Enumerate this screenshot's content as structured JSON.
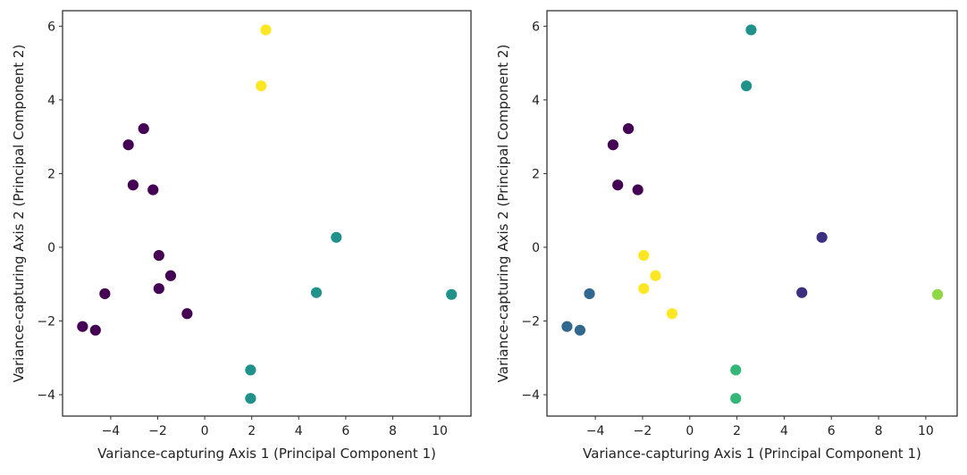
{
  "chart_data": [
    {
      "type": "scatter",
      "title": "",
      "xlabel": "Variance-capturing Axis 1 (Principal Component 1)",
      "ylabel": "Variance-capturing Axis 2 (Principal Component 2)",
      "xlim": [
        -6.05,
        11.33
      ],
      "ylim": [
        -4.58,
        6.42
      ],
      "xticks": [
        -4,
        -2,
        0,
        2,
        4,
        6,
        8,
        10
      ],
      "yticks": [
        -4,
        -2,
        0,
        2,
        4,
        6
      ],
      "grid": false,
      "points": [
        {
          "x": 2.6,
          "y": 5.9,
          "color": "#fde725"
        },
        {
          "x": 2.4,
          "y": 4.38,
          "color": "#fde725"
        },
        {
          "x": -2.6,
          "y": 3.22,
          "color": "#440154"
        },
        {
          "x": -3.25,
          "y": 2.78,
          "color": "#440154"
        },
        {
          "x": -3.05,
          "y": 1.69,
          "color": "#440154"
        },
        {
          "x": -2.2,
          "y": 1.56,
          "color": "#440154"
        },
        {
          "x": -1.95,
          "y": -0.22,
          "color": "#440154"
        },
        {
          "x": -1.45,
          "y": -0.77,
          "color": "#440154"
        },
        {
          "x": -1.95,
          "y": -1.12,
          "color": "#440154"
        },
        {
          "x": -0.75,
          "y": -1.8,
          "color": "#440154"
        },
        {
          "x": -4.25,
          "y": -1.26,
          "color": "#440154"
        },
        {
          "x": -5.2,
          "y": -2.15,
          "color": "#440154"
        },
        {
          "x": -4.65,
          "y": -2.25,
          "color": "#440154"
        },
        {
          "x": 5.6,
          "y": 0.27,
          "color": "#21918c"
        },
        {
          "x": 4.75,
          "y": -1.23,
          "color": "#21918c"
        },
        {
          "x": 10.5,
          "y": -1.28,
          "color": "#21918c"
        },
        {
          "x": 1.95,
          "y": -3.33,
          "color": "#21918c"
        },
        {
          "x": 1.95,
          "y": -4.1,
          "color": "#21918c"
        }
      ]
    },
    {
      "type": "scatter",
      "title": "",
      "xlabel": "Variance-capturing Axis 1 (Principal Component 1)",
      "ylabel": "Variance-capturing Axis 2 (Principal Component 2)",
      "xlim": [
        -6.05,
        11.33
      ],
      "ylim": [
        -4.58,
        6.42
      ],
      "xticks": [
        -4,
        -2,
        0,
        2,
        4,
        6,
        8,
        10
      ],
      "yticks": [
        -4,
        -2,
        0,
        2,
        4,
        6
      ],
      "grid": false,
      "points": [
        {
          "x": 2.6,
          "y": 5.9,
          "color": "#21918c"
        },
        {
          "x": 2.4,
          "y": 4.38,
          "color": "#21918c"
        },
        {
          "x": -2.6,
          "y": 3.22,
          "color": "#440154"
        },
        {
          "x": -3.25,
          "y": 2.78,
          "color": "#440154"
        },
        {
          "x": -3.05,
          "y": 1.69,
          "color": "#440154"
        },
        {
          "x": -2.2,
          "y": 1.56,
          "color": "#440154"
        },
        {
          "x": -1.95,
          "y": -0.22,
          "color": "#fde725"
        },
        {
          "x": -1.45,
          "y": -0.77,
          "color": "#fde725"
        },
        {
          "x": -1.95,
          "y": -1.12,
          "color": "#fde725"
        },
        {
          "x": -0.75,
          "y": -1.8,
          "color": "#fde725"
        },
        {
          "x": -4.25,
          "y": -1.26,
          "color": "#31688e"
        },
        {
          "x": -5.2,
          "y": -2.15,
          "color": "#31688e"
        },
        {
          "x": -4.65,
          "y": -2.25,
          "color": "#31688e"
        },
        {
          "x": 5.6,
          "y": 0.27,
          "color": "#3b2f80"
        },
        {
          "x": 4.75,
          "y": -1.23,
          "color": "#3b2f80"
        },
        {
          "x": 10.5,
          "y": -1.28,
          "color": "#8fd744"
        },
        {
          "x": 1.95,
          "y": -3.33,
          "color": "#35b779"
        },
        {
          "x": 1.95,
          "y": -4.1,
          "color": "#35b779"
        }
      ]
    }
  ]
}
